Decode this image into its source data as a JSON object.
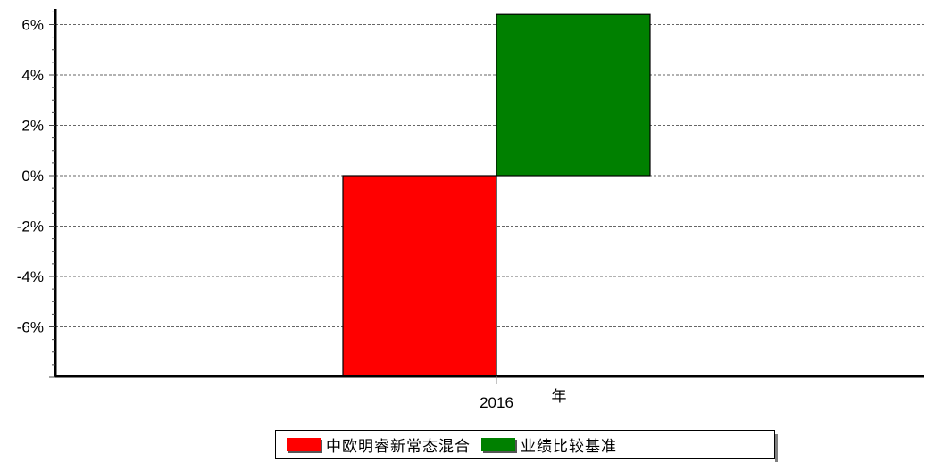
{
  "chart_data": {
    "type": "bar",
    "categories": [
      "2016"
    ],
    "series": [
      {
        "name": "中欧明睿新常态混合",
        "values": [
          -8.0
        ],
        "color": "#ff0000"
      },
      {
        "name": "业绩比较基准",
        "values": [
          6.4
        ],
        "color": "#008000"
      }
    ],
    "xlabel": "年",
    "ylabel": "",
    "ylim": [
      -8,
      6.5
    ],
    "yticks": [
      6,
      4,
      2,
      0,
      -2,
      -4,
      -6
    ],
    "ytick_labels": [
      "6%",
      "4%",
      "2%",
      "0%",
      "-2%",
      "-4%",
      "-6%"
    ],
    "grid": "horizontal-dashed",
    "legend_position": "bottom"
  }
}
